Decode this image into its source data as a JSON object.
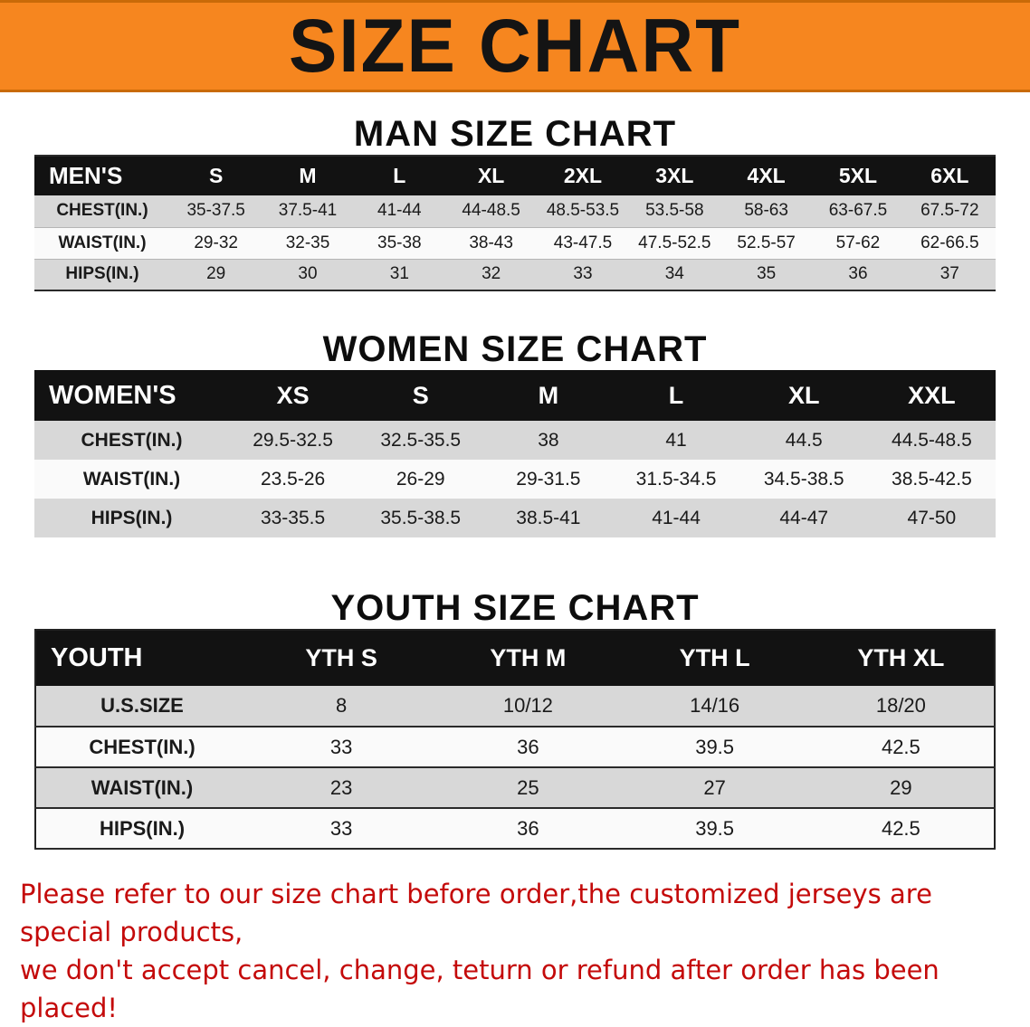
{
  "banner": {
    "title": "SIZE CHART"
  },
  "sections": {
    "men": {
      "heading": "MAN SIZE CHART",
      "table": {
        "header": [
          "MEN'S",
          "S",
          "M",
          "L",
          "XL",
          "2XL",
          "3XL",
          "4XL",
          "5XL",
          "6XL"
        ],
        "rows": [
          {
            "label": "CHEST(IN.)",
            "values": [
              "35-37.5",
              "37.5-41",
              "41-44",
              "44-48.5",
              "48.5-53.5",
              "53.5-58",
              "58-63",
              "63-67.5",
              "67.5-72"
            ]
          },
          {
            "label": "WAIST(IN.)",
            "values": [
              "29-32",
              "32-35",
              "35-38",
              "38-43",
              "43-47.5",
              "47.5-52.5",
              "52.5-57",
              "57-62",
              "62-66.5"
            ]
          },
          {
            "label": "HIPS(IN.)",
            "values": [
              "29",
              "30",
              "31",
              "32",
              "33",
              "34",
              "35",
              "36",
              "37"
            ]
          }
        ]
      }
    },
    "women": {
      "heading": "WOMEN SIZE CHART",
      "table": {
        "header": [
          "WOMEN'S",
          "XS",
          "S",
          "M",
          "L",
          "XL",
          "XXL"
        ],
        "rows": [
          {
            "label": "CHEST(IN.)",
            "values": [
              "29.5-32.5",
              "32.5-35.5",
              "38",
              "41",
              "44.5",
              "44.5-48.5"
            ]
          },
          {
            "label": "WAIST(IN.)",
            "values": [
              "23.5-26",
              "26-29",
              "29-31.5",
              "31.5-34.5",
              "34.5-38.5",
              "38.5-42.5"
            ]
          },
          {
            "label": "HIPS(IN.)",
            "values": [
              "33-35.5",
              "35.5-38.5",
              "38.5-41",
              "41-44",
              "44-47",
              "47-50"
            ]
          }
        ]
      }
    },
    "youth": {
      "heading": "YOUTH SIZE CHART",
      "table": {
        "header": [
          "YOUTH",
          "YTH S",
          "YTH M",
          "YTH L",
          "YTH XL"
        ],
        "rows": [
          {
            "label": "U.S.SIZE",
            "values": [
              "8",
              "10/12",
              "14/16",
              "18/20"
            ]
          },
          {
            "label": "CHEST(IN.)",
            "values": [
              "33",
              "36",
              "39.5",
              "42.5"
            ]
          },
          {
            "label": "WAIST(IN.)",
            "values": [
              "23",
              "25",
              "27",
              "29"
            ]
          },
          {
            "label": "HIPS(IN.)",
            "values": [
              "33",
              "36",
              "39.5",
              "42.5"
            ]
          }
        ]
      }
    }
  },
  "disclaimer": {
    "line1": "Please refer to our size chart before order,the customized jerseys are special products,",
    "line2": "we don't accept cancel, change, teturn or refund after order has been placed!"
  },
  "colors": {
    "banner_bg": "#F6861F",
    "header_bg": "#121212",
    "row_gray": "#D8D8D8",
    "row_light": "#FAFAFA",
    "disclaimer_red": "#C40A0A"
  }
}
